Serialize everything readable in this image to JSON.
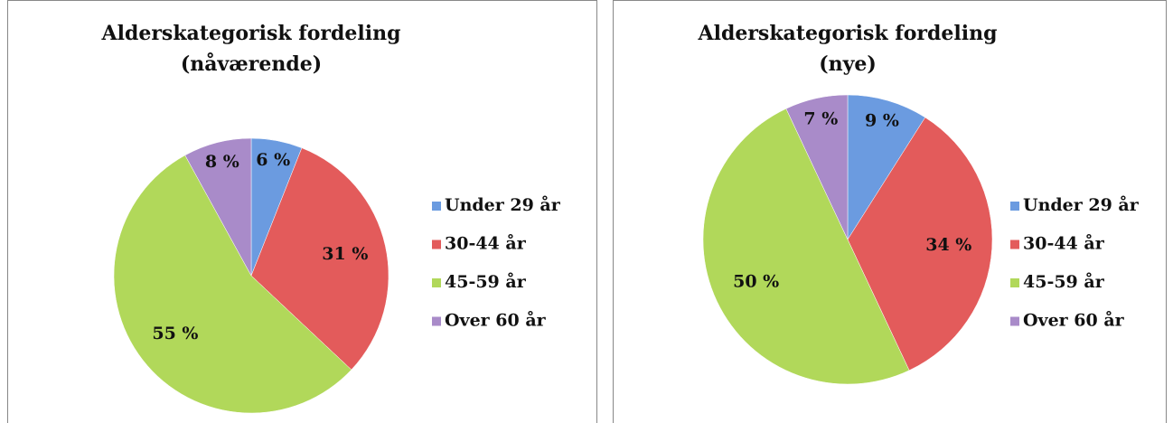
{
  "chart_data": [
    {
      "type": "pie",
      "title": [
        "Alderskategorisk fordeling",
        "(nåværende)"
      ],
      "categories": [
        "Under 29 år",
        "30-44 år",
        "45-59 år",
        "Over 60 år"
      ],
      "values": [
        6,
        31,
        55,
        8
      ],
      "value_labels": [
        "6 %",
        "31 %",
        "55 %",
        "8 %"
      ],
      "colors": [
        "#6b9be0",
        "#e35b5b",
        "#b1d85a",
        "#a98bc9"
      ],
      "legend": "right"
    },
    {
      "type": "pie",
      "title": [
        "Alderskategorisk fordeling",
        "(nye)"
      ],
      "categories": [
        "Under 29 år",
        "30-44 år",
        "45-59 år",
        "Over 60 år"
      ],
      "values": [
        9,
        34,
        50,
        7
      ],
      "value_labels": [
        "9 %",
        "34 %",
        "50 %",
        "7 %"
      ],
      "colors": [
        "#6b9be0",
        "#e35b5b",
        "#b1d85a",
        "#a98bc9"
      ],
      "legend": "right"
    }
  ]
}
